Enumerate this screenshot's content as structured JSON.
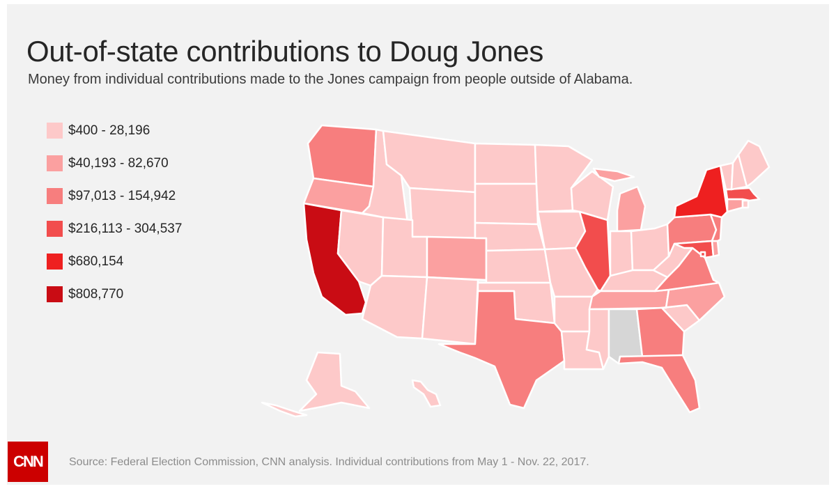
{
  "title": "Out-of-state contributions to Doug Jones",
  "subtitle": "Money from individual contributions made to the Jones campaign from people outside of Alabama.",
  "legend": [
    {
      "label": "$400 - 28,196",
      "color": "#fdc9c9"
    },
    {
      "label": "$40,193 - 82,670",
      "color": "#fba0a0"
    },
    {
      "label": "$97,013 - 154,942",
      "color": "#f77e7e"
    },
    {
      "label": "$216,113 - 304,537",
      "color": "#f24d4d"
    },
    {
      "label": "$680,154",
      "color": "#ee2020"
    },
    {
      "label": "$808,770",
      "color": "#c90c14"
    }
  ],
  "no_data_color": "#d6d6d6",
  "state_fill": {
    "WA": "#f77e7e",
    "OR": "#fba0a0",
    "CA": "#c90c14",
    "NV": "#fdc9c9",
    "ID": "#fdc9c9",
    "MT": "#fdc9c9",
    "WY": "#fdc9c9",
    "UT": "#fdc9c9",
    "AZ": "#fdc9c9",
    "CO": "#fba0a0",
    "NM": "#fdc9c9",
    "ND": "#fdc9c9",
    "SD": "#fdc9c9",
    "NE": "#fdc9c9",
    "KS": "#fdc9c9",
    "OK": "#fdc9c9",
    "TX": "#f77e7e",
    "MN": "#fdc9c9",
    "IA": "#fdc9c9",
    "MO": "#fdc9c9",
    "AR": "#fdc9c9",
    "LA": "#fdc9c9",
    "WI": "#fdc9c9",
    "IL": "#f24d4d",
    "MI": "#fba0a0",
    "IN": "#fdc9c9",
    "OH": "#fdc9c9",
    "KY": "#fdc9c9",
    "TN": "#fba0a0",
    "MS": "#fdc9c9",
    "AL": "#d6d6d6",
    "GA": "#f77e7e",
    "FL": "#f77e7e",
    "SC": "#fdc9c9",
    "NC": "#fba0a0",
    "VA": "#f77e7e",
    "WV": "#fdc9c9",
    "PA": "#f77e7e",
    "NY": "#ee2020",
    "VT": "#fdc9c9",
    "NH": "#fdc9c9",
    "ME": "#fdc9c9",
    "MA": "#f24d4d",
    "CT": "#fba0a0",
    "RI": "#fdc9c9",
    "NJ": "#f77e7e",
    "DE": "#fba0a0",
    "MD": "#f24d4d",
    "DC": "#f24d4d",
    "AK": "#fdc9c9",
    "HI": "#fdc9c9"
  },
  "source": "Source: Federal Election Commission, CNN analysis. Individual contributions from May 1 - Nov. 22, 2017.",
  "logo": "CNN"
}
